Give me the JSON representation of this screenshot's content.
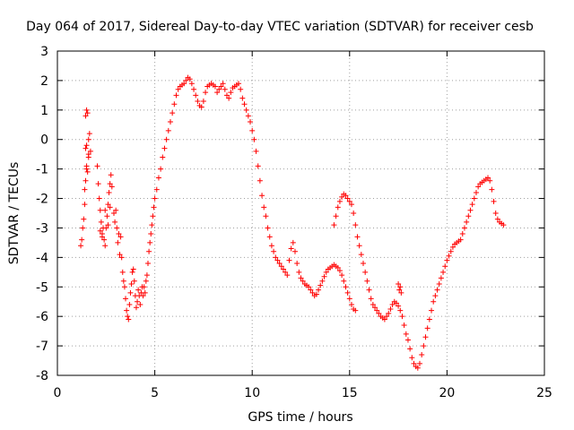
{
  "chart_data": {
    "type": "scatter",
    "title": "Day 064 of 2017, Sidereal Day-to-day VTEC variation (SDTVAR) for receiver cesb",
    "xlabel": "GPS time / hours",
    "ylabel": "SDTVAR / TECUs",
    "xlim": [
      0,
      25
    ],
    "ylim": [
      -8,
      3
    ],
    "xticks": [
      0,
      5,
      10,
      15,
      20,
      25
    ],
    "yticks": [
      3,
      2,
      1,
      0,
      -1,
      -2,
      -3,
      -4,
      -5,
      -6,
      -7,
      -8
    ],
    "grid": true,
    "marker": "+",
    "color": "#ff0000",
    "series": [
      {
        "name": "cesb",
        "points": [
          [
            1.2,
            -3.6
          ],
          [
            1.25,
            -3.4
          ],
          [
            1.3,
            -3.0
          ],
          [
            1.35,
            -2.7
          ],
          [
            1.4,
            -1.7
          ],
          [
            1.45,
            -1.4
          ],
          [
            1.45,
            -0.3
          ],
          [
            1.5,
            -0.2
          ],
          [
            1.5,
            -0.9
          ],
          [
            1.55,
            -1.1
          ],
          [
            1.6,
            -0.5
          ],
          [
            1.6,
            0.0
          ],
          [
            1.65,
            0.2
          ],
          [
            1.7,
            -0.4
          ],
          [
            1.4,
            -2.2
          ],
          [
            1.5,
            -1.0
          ],
          [
            1.45,
            0.8
          ],
          [
            1.5,
            1.0
          ],
          [
            1.55,
            0.9
          ],
          [
            1.6,
            -0.6
          ],
          [
            2.05,
            -0.9
          ],
          [
            2.1,
            -1.5
          ],
          [
            2.15,
            -2.0
          ],
          [
            2.2,
            -2.4
          ],
          [
            2.25,
            -2.8
          ],
          [
            2.3,
            -3.2
          ],
          [
            2.35,
            -3.0
          ],
          [
            2.4,
            -3.4
          ],
          [
            2.45,
            -3.6
          ],
          [
            2.5,
            -3.0
          ],
          [
            2.55,
            -2.6
          ],
          [
            2.6,
            -2.2
          ],
          [
            2.65,
            -1.8
          ],
          [
            2.7,
            -1.5
          ],
          [
            2.75,
            -1.2
          ],
          [
            2.8,
            -1.6
          ],
          [
            2.2,
            -3.1
          ],
          [
            2.3,
            -3.3
          ],
          [
            2.45,
            -2.4
          ],
          [
            2.6,
            -2.9
          ],
          [
            2.7,
            -2.3
          ],
          [
            2.9,
            -2.5
          ],
          [
            2.95,
            -2.8
          ],
          [
            3.0,
            -2.4
          ],
          [
            3.05,
            -3.0
          ],
          [
            3.1,
            -3.5
          ],
          [
            3.15,
            -3.2
          ],
          [
            3.2,
            -3.9
          ],
          [
            3.25,
            -3.3
          ],
          [
            3.3,
            -4.0
          ],
          [
            3.35,
            -4.5
          ],
          [
            3.4,
            -4.8
          ],
          [
            3.45,
            -5.0
          ],
          [
            3.5,
            -5.4
          ],
          [
            3.55,
            -5.8
          ],
          [
            3.6,
            -6.0
          ],
          [
            3.65,
            -6.1
          ],
          [
            3.7,
            -5.6
          ],
          [
            3.75,
            -5.2
          ],
          [
            3.8,
            -4.9
          ],
          [
            3.85,
            -4.5
          ],
          [
            3.9,
            -4.4
          ],
          [
            3.95,
            -4.8
          ],
          [
            4.0,
            -5.3
          ],
          [
            4.05,
            -5.7
          ],
          [
            4.1,
            -5.5
          ],
          [
            4.15,
            -5.1
          ],
          [
            4.2,
            -5.3
          ],
          [
            4.25,
            -5.6
          ],
          [
            4.3,
            -5.2
          ],
          [
            4.35,
            -5.0
          ],
          [
            4.4,
            -5.3
          ],
          [
            4.45,
            -5.0
          ],
          [
            4.5,
            -5.2
          ],
          [
            4.55,
            -4.8
          ],
          [
            4.6,
            -4.6
          ],
          [
            4.65,
            -4.2
          ],
          [
            4.7,
            -3.8
          ],
          [
            4.75,
            -3.5
          ],
          [
            4.8,
            -3.2
          ],
          [
            4.85,
            -2.9
          ],
          [
            4.9,
            -2.6
          ],
          [
            4.95,
            -2.3
          ],
          [
            5.0,
            -2.0
          ],
          [
            5.1,
            -1.7
          ],
          [
            5.2,
            -1.3
          ],
          [
            5.3,
            -1.0
          ],
          [
            5.4,
            -0.6
          ],
          [
            5.5,
            -0.3
          ],
          [
            5.6,
            0.0
          ],
          [
            5.7,
            0.3
          ],
          [
            5.8,
            0.6
          ],
          [
            5.9,
            0.9
          ],
          [
            6.0,
            1.2
          ],
          [
            6.1,
            1.5
          ],
          [
            6.2,
            1.7
          ],
          [
            6.3,
            1.8
          ],
          [
            6.4,
            1.85
          ],
          [
            6.5,
            1.9
          ],
          [
            6.6,
            2.0
          ],
          [
            6.7,
            2.1
          ],
          [
            6.8,
            2.05
          ],
          [
            6.9,
            1.9
          ],
          [
            7.0,
            1.7
          ],
          [
            7.1,
            1.5
          ],
          [
            7.2,
            1.3
          ],
          [
            7.3,
            1.15
          ],
          [
            7.4,
            1.1
          ],
          [
            7.5,
            1.3
          ],
          [
            7.6,
            1.6
          ],
          [
            7.7,
            1.8
          ],
          [
            7.8,
            1.85
          ],
          [
            7.9,
            1.9
          ],
          [
            8.0,
            1.85
          ],
          [
            8.1,
            1.8
          ],
          [
            8.2,
            1.6
          ],
          [
            8.3,
            1.7
          ],
          [
            8.4,
            1.8
          ],
          [
            8.5,
            1.9
          ],
          [
            8.6,
            1.7
          ],
          [
            8.7,
            1.5
          ],
          [
            8.8,
            1.4
          ],
          [
            8.9,
            1.6
          ],
          [
            9.0,
            1.75
          ],
          [
            9.1,
            1.8
          ],
          [
            9.2,
            1.85
          ],
          [
            9.3,
            1.9
          ],
          [
            9.4,
            1.7
          ],
          [
            9.5,
            1.4
          ],
          [
            9.6,
            1.2
          ],
          [
            9.7,
            1.0
          ],
          [
            9.8,
            0.8
          ],
          [
            9.9,
            0.6
          ],
          [
            10.0,
            0.3
          ],
          [
            10.1,
            0.0
          ],
          [
            10.2,
            -0.4
          ],
          [
            10.3,
            -0.9
          ],
          [
            10.4,
            -1.4
          ],
          [
            10.5,
            -1.9
          ],
          [
            10.6,
            -2.3
          ],
          [
            10.7,
            -2.6
          ],
          [
            10.8,
            -3.0
          ],
          [
            10.9,
            -3.3
          ],
          [
            11.0,
            -3.6
          ],
          [
            11.1,
            -3.8
          ],
          [
            11.2,
            -4.0
          ],
          [
            11.3,
            -4.1
          ],
          [
            11.4,
            -4.2
          ],
          [
            11.5,
            -4.3
          ],
          [
            11.6,
            -4.4
          ],
          [
            11.7,
            -4.5
          ],
          [
            11.8,
            -4.6
          ],
          [
            11.9,
            -4.1
          ],
          [
            12.0,
            -3.7
          ],
          [
            12.1,
            -3.5
          ],
          [
            12.2,
            -3.8
          ],
          [
            12.3,
            -4.2
          ],
          [
            12.4,
            -4.5
          ],
          [
            12.5,
            -4.7
          ],
          [
            12.6,
            -4.8
          ],
          [
            12.7,
            -4.9
          ],
          [
            12.8,
            -4.95
          ],
          [
            12.9,
            -5.0
          ],
          [
            13.0,
            -5.1
          ],
          [
            13.1,
            -5.2
          ],
          [
            13.2,
            -5.3
          ],
          [
            13.3,
            -5.25
          ],
          [
            13.4,
            -5.1
          ],
          [
            13.5,
            -4.95
          ],
          [
            13.6,
            -4.8
          ],
          [
            13.7,
            -4.65
          ],
          [
            13.8,
            -4.5
          ],
          [
            13.9,
            -4.4
          ],
          [
            14.0,
            -4.35
          ],
          [
            14.1,
            -4.3
          ],
          [
            14.2,
            -4.25
          ],
          [
            14.3,
            -4.3
          ],
          [
            14.4,
            -4.35
          ],
          [
            14.5,
            -4.45
          ],
          [
            14.6,
            -4.6
          ],
          [
            14.7,
            -4.8
          ],
          [
            14.8,
            -5.0
          ],
          [
            14.9,
            -5.2
          ],
          [
            15.0,
            -5.4
          ],
          [
            15.1,
            -5.6
          ],
          [
            15.2,
            -5.75
          ],
          [
            15.3,
            -5.8
          ],
          [
            14.2,
            -2.9
          ],
          [
            14.3,
            -2.6
          ],
          [
            14.4,
            -2.3
          ],
          [
            14.5,
            -2.1
          ],
          [
            14.6,
            -1.95
          ],
          [
            14.7,
            -1.85
          ],
          [
            14.8,
            -1.9
          ],
          [
            14.9,
            -2.0
          ],
          [
            15.0,
            -2.1
          ],
          [
            15.1,
            -2.2
          ],
          [
            15.2,
            -2.5
          ],
          [
            15.3,
            -2.9
          ],
          [
            15.4,
            -3.3
          ],
          [
            15.5,
            -3.6
          ],
          [
            15.6,
            -3.9
          ],
          [
            15.7,
            -4.2
          ],
          [
            15.8,
            -4.5
          ],
          [
            15.9,
            -4.8
          ],
          [
            16.0,
            -5.1
          ],
          [
            16.1,
            -5.4
          ],
          [
            16.2,
            -5.6
          ],
          [
            16.3,
            -5.7
          ],
          [
            16.4,
            -5.8
          ],
          [
            16.5,
            -5.9
          ],
          [
            16.6,
            -6.0
          ],
          [
            16.7,
            -6.05
          ],
          [
            16.8,
            -6.1
          ],
          [
            16.9,
            -6.0
          ],
          [
            17.0,
            -5.9
          ],
          [
            17.1,
            -5.75
          ],
          [
            17.2,
            -5.6
          ],
          [
            17.3,
            -5.5
          ],
          [
            17.4,
            -5.55
          ],
          [
            17.5,
            -5.65
          ],
          [
            17.6,
            -5.8
          ],
          [
            17.5,
            -4.9
          ],
          [
            17.55,
            -5.1
          ],
          [
            17.6,
            -5.0
          ],
          [
            17.65,
            -5.2
          ],
          [
            17.7,
            -6.0
          ],
          [
            17.8,
            -6.3
          ],
          [
            17.9,
            -6.6
          ],
          [
            18.0,
            -6.8
          ],
          [
            18.1,
            -7.1
          ],
          [
            18.2,
            -7.4
          ],
          [
            18.3,
            -7.6
          ],
          [
            18.4,
            -7.7
          ],
          [
            18.5,
            -7.75
          ],
          [
            18.6,
            -7.6
          ],
          [
            18.7,
            -7.3
          ],
          [
            18.8,
            -7.0
          ],
          [
            18.9,
            -6.7
          ],
          [
            19.0,
            -6.4
          ],
          [
            19.1,
            -6.1
          ],
          [
            19.2,
            -5.8
          ],
          [
            19.3,
            -5.5
          ],
          [
            19.4,
            -5.3
          ],
          [
            19.5,
            -5.1
          ],
          [
            19.6,
            -4.9
          ],
          [
            19.7,
            -4.7
          ],
          [
            19.8,
            -4.5
          ],
          [
            19.9,
            -4.3
          ],
          [
            20.0,
            -4.1
          ],
          [
            20.1,
            -3.95
          ],
          [
            20.2,
            -3.8
          ],
          [
            20.3,
            -3.65
          ],
          [
            20.4,
            -3.55
          ],
          [
            20.5,
            -3.5
          ],
          [
            20.6,
            -3.45
          ],
          [
            20.7,
            -3.4
          ],
          [
            20.8,
            -3.2
          ],
          [
            20.9,
            -3.0
          ],
          [
            21.0,
            -2.8
          ],
          [
            21.1,
            -2.6
          ],
          [
            21.2,
            -2.4
          ],
          [
            21.3,
            -2.2
          ],
          [
            21.4,
            -2.0
          ],
          [
            21.5,
            -1.8
          ],
          [
            21.6,
            -1.6
          ],
          [
            21.7,
            -1.5
          ],
          [
            21.8,
            -1.45
          ],
          [
            21.9,
            -1.4
          ],
          [
            22.0,
            -1.35
          ],
          [
            22.1,
            -1.3
          ],
          [
            22.2,
            -1.4
          ],
          [
            22.3,
            -1.7
          ],
          [
            22.4,
            -2.1
          ],
          [
            22.5,
            -2.5
          ],
          [
            22.6,
            -2.7
          ],
          [
            22.7,
            -2.8
          ],
          [
            22.8,
            -2.85
          ],
          [
            22.9,
            -2.9
          ]
        ]
      }
    ]
  }
}
